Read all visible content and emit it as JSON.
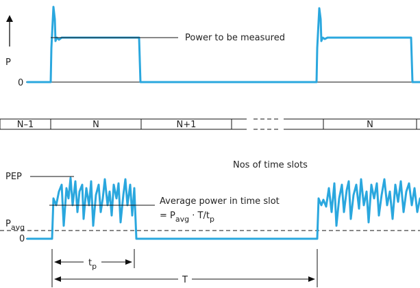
{
  "top_panel": {
    "y_axis_label": "P",
    "zero_label": "0",
    "callout": "Power to be measured"
  },
  "slot_row": {
    "slots": [
      "N–1",
      "N",
      "N+1",
      "",
      "N"
    ],
    "caption": "Nos of time slots"
  },
  "bottom_panel": {
    "pep_label": "PEP",
    "pavg_label_base": "P",
    "pavg_label_sub": "avg",
    "zero_label": "0",
    "callout_line1": "Average power in time slot",
    "callout_line2_prefix": "= P",
    "callout_line2_sub1": "avg",
    "callout_line2_mid": " · T/t",
    "callout_line2_sub2": "p",
    "tp_label_base": "t",
    "tp_label_sub": "p",
    "t_label": "T"
  },
  "colors": {
    "signal": "#2aa7de",
    "ink": "#111111"
  }
}
